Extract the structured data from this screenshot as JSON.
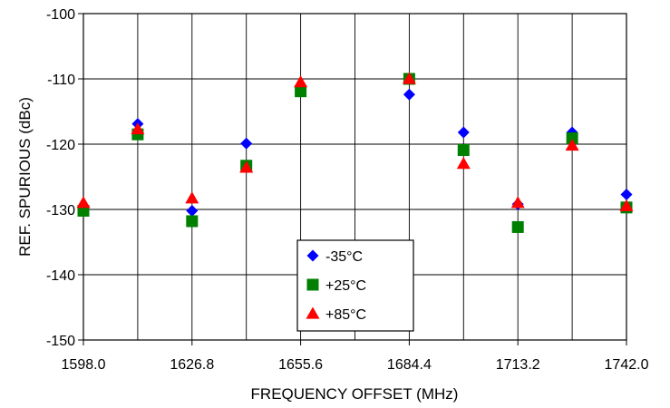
{
  "chart_data": {
    "type": "scatter",
    "xlabel": "FREQUENCY OFFSET (MHz)",
    "ylabel": "REF. SPURIOUS (dBc)",
    "xlim": [
      1598.0,
      1742.0
    ],
    "ylim": [
      -150,
      -100
    ],
    "xticks": [
      "1598.0",
      "1626.8",
      "1655.6",
      "1684.4",
      "1713.2",
      "1742.0"
    ],
    "yticks": [
      "-100",
      "-110",
      "-120",
      "-130",
      "-140",
      "-150"
    ],
    "x_gridlines": [
      1598.0,
      1612.4,
      1626.8,
      1641.2,
      1655.6,
      1670.0,
      1684.4,
      1698.8,
      1713.2,
      1727.6,
      1742.0
    ],
    "grid": true,
    "legend_position": "bottom-center",
    "series": [
      {
        "name": "-35°C",
        "marker": "diamond",
        "color": "#0000ff",
        "points": [
          [
            1598.0,
            -129.8
          ],
          [
            1612.4,
            -116.9
          ],
          [
            1626.8,
            -130.2
          ],
          [
            1641.2,
            -119.9
          ],
          [
            1655.6,
            -111.6
          ],
          [
            1684.4,
            -112.4
          ],
          [
            1698.8,
            -118.2
          ],
          [
            1713.2,
            -129.2
          ],
          [
            1727.6,
            -118.2
          ],
          [
            1742.0,
            -127.7
          ]
        ]
      },
      {
        "name": "+25°C",
        "marker": "square",
        "color": "#008000",
        "points": [
          [
            1598.0,
            -130.2
          ],
          [
            1612.4,
            -118.5
          ],
          [
            1626.8,
            -131.8
          ],
          [
            1641.2,
            -123.3
          ],
          [
            1655.6,
            -111.9
          ],
          [
            1684.4,
            -110.0
          ],
          [
            1698.8,
            -120.9
          ],
          [
            1713.2,
            -132.7
          ],
          [
            1727.6,
            -119.1
          ],
          [
            1742.0,
            -129.7
          ]
        ]
      },
      {
        "name": "+85°C",
        "marker": "triangle",
        "color": "#ff0000",
        "points": [
          [
            1598.0,
            -129.0
          ],
          [
            1612.4,
            -117.7
          ],
          [
            1626.8,
            -128.3
          ],
          [
            1641.2,
            -123.6
          ],
          [
            1655.6,
            -110.5
          ],
          [
            1684.4,
            -110.0
          ],
          [
            1698.8,
            -123.0
          ],
          [
            1713.2,
            -129.0
          ],
          [
            1727.6,
            -120.2
          ],
          [
            1742.0,
            -129.5
          ]
        ]
      }
    ]
  }
}
